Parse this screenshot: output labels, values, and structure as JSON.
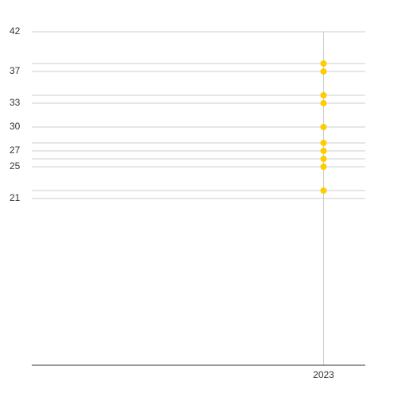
{
  "chart_data": {
    "type": "scatter",
    "x": [
      2023,
      2023,
      2023,
      2023,
      2023,
      2023,
      2023,
      2023,
      2023,
      2023
    ],
    "values": [
      38,
      37,
      34,
      33,
      30,
      28,
      27,
      26,
      25,
      22
    ],
    "color": "#ffcc00",
    "xlim": [
      2016,
      2024
    ],
    "xticks": [
      2023
    ],
    "ylim": [
      0,
      42
    ],
    "yticks": [
      42,
      37,
      33,
      30,
      27,
      25,
      21
    ],
    "minor_yticks": [
      38,
      34,
      28,
      26,
      22
    ],
    "grid": true
  }
}
